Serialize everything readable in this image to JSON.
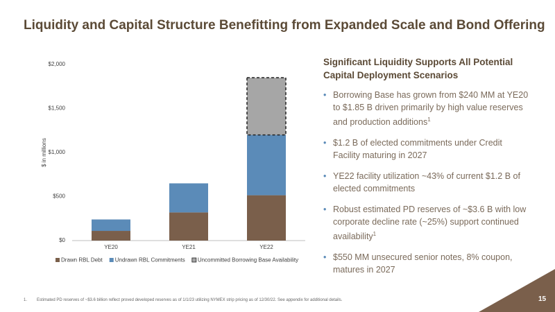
{
  "title": "Liquidity and Capital Structure Benefitting from Expanded Scale and Bond Offering",
  "chart_data": {
    "type": "bar",
    "stacked": true,
    "y_label": "$ in millions",
    "categories": [
      "YE20",
      "YE21",
      "YE22"
    ],
    "series": [
      {
        "name": "Drawn RBL Debt",
        "color": "#7a5f4b",
        "values": [
          110,
          320,
          515
        ]
      },
      {
        "name": "Undrawn RBL Commitments",
        "color": "#5b8bb8",
        "values": [
          130,
          330,
          685
        ]
      },
      {
        "name": "Uncommitted Borrowing Base Availability",
        "color": "#a6a6a6",
        "dashed": true,
        "values": [
          0,
          0,
          650
        ]
      }
    ],
    "ylim": [
      0,
      2000
    ],
    "yticks": [
      {
        "value": 0,
        "label": "$0"
      },
      {
        "value": 500,
        "label": "$500"
      },
      {
        "value": 1000,
        "label": "$1,000"
      },
      {
        "value": 1500,
        "label": "$1,500"
      },
      {
        "value": 2000,
        "label": "$2,000"
      }
    ],
    "grid": false,
    "legend": "bottom"
  },
  "panel": {
    "heading": "Significant Liquidity Supports All Potential Capital Deployment Scenarios",
    "bullets": [
      {
        "text": "Borrowing Base has grown from $240 MM at YE20 to $1.85 B driven primarily by high value reserves and production additions",
        "sup": "1"
      },
      {
        "text": "$1.2 B of elected commitments under Credit Facility maturing in 2027"
      },
      {
        "text": "YE22 facility utilization ~43% of current $1.2 B of elected commitments"
      },
      {
        "text": "Robust estimated PD reserves of ~$3.6 B with low corporate decline rate (~25%) support continued availability",
        "sup": "1"
      },
      {
        "text": "$550 MM unsecured senior notes, 8% coupon, matures in 2027"
      }
    ]
  },
  "footnote": {
    "number": "1.",
    "text": "Estimated PD reserves of ~$3.6 billion reflect proved developed reserves as of 1/1/23 utilizing NYMEX strip pricing as of 12/30/22. See appendix for additional details."
  },
  "page_number": "15"
}
